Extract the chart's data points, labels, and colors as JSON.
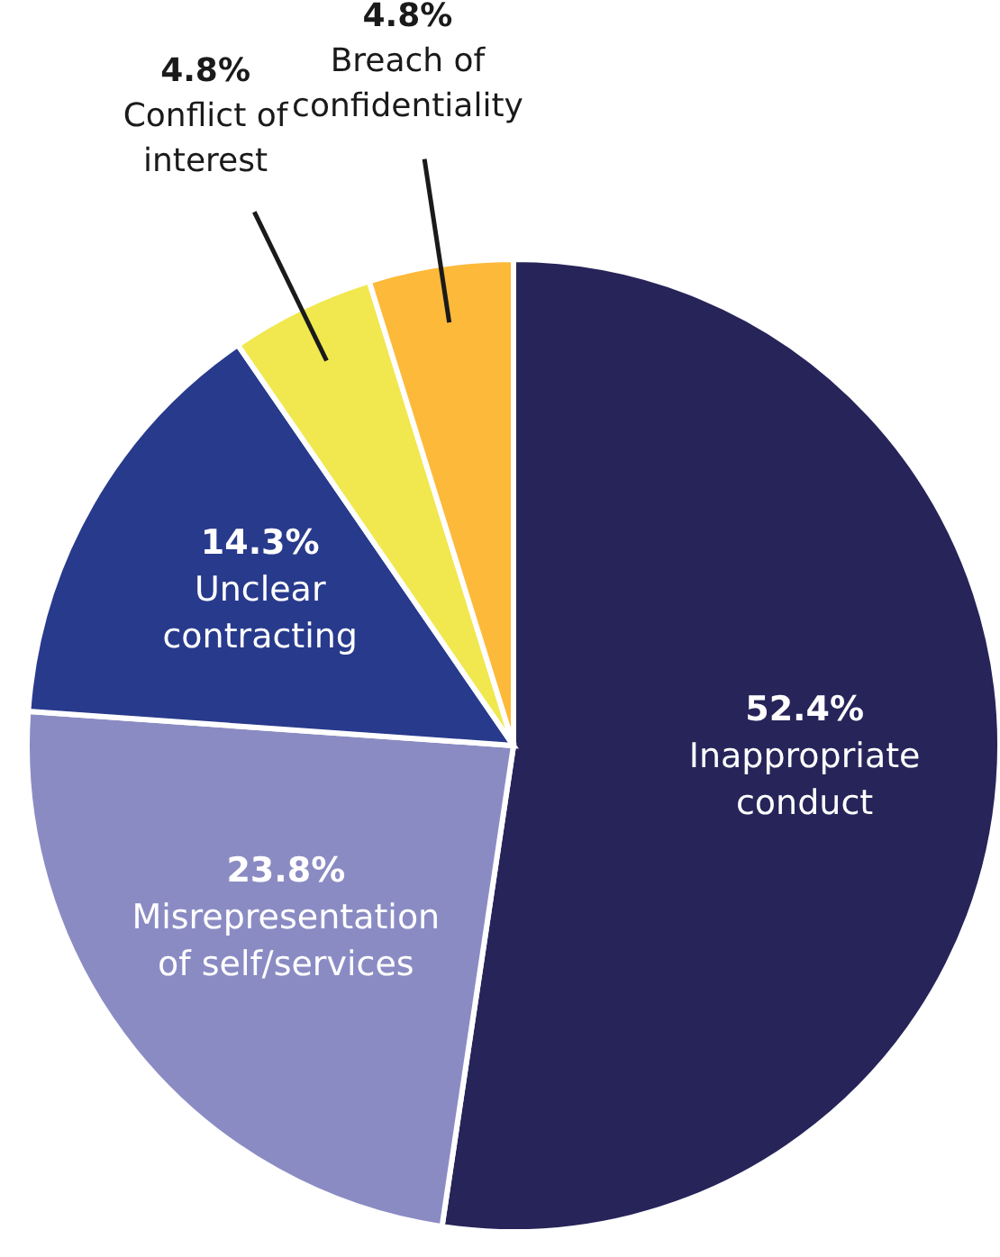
{
  "chart_data": {
    "type": "pie",
    "categories": [
      "Inappropriate conduct",
      "Misrepresentation of self/services",
      "Unclear contracting",
      "Conflict of interest",
      "Breach of confidentiality"
    ],
    "values": [
      52.4,
      23.8,
      14.3,
      4.8,
      4.8
    ],
    "colors": [
      "#262459",
      "#8b8bc4",
      "#283a8c",
      "#f0e84e",
      "#fdb93a"
    ],
    "value_labels": [
      "52.4%",
      "23.8%",
      "14.3%",
      "4.8%",
      "4.8%"
    ]
  }
}
